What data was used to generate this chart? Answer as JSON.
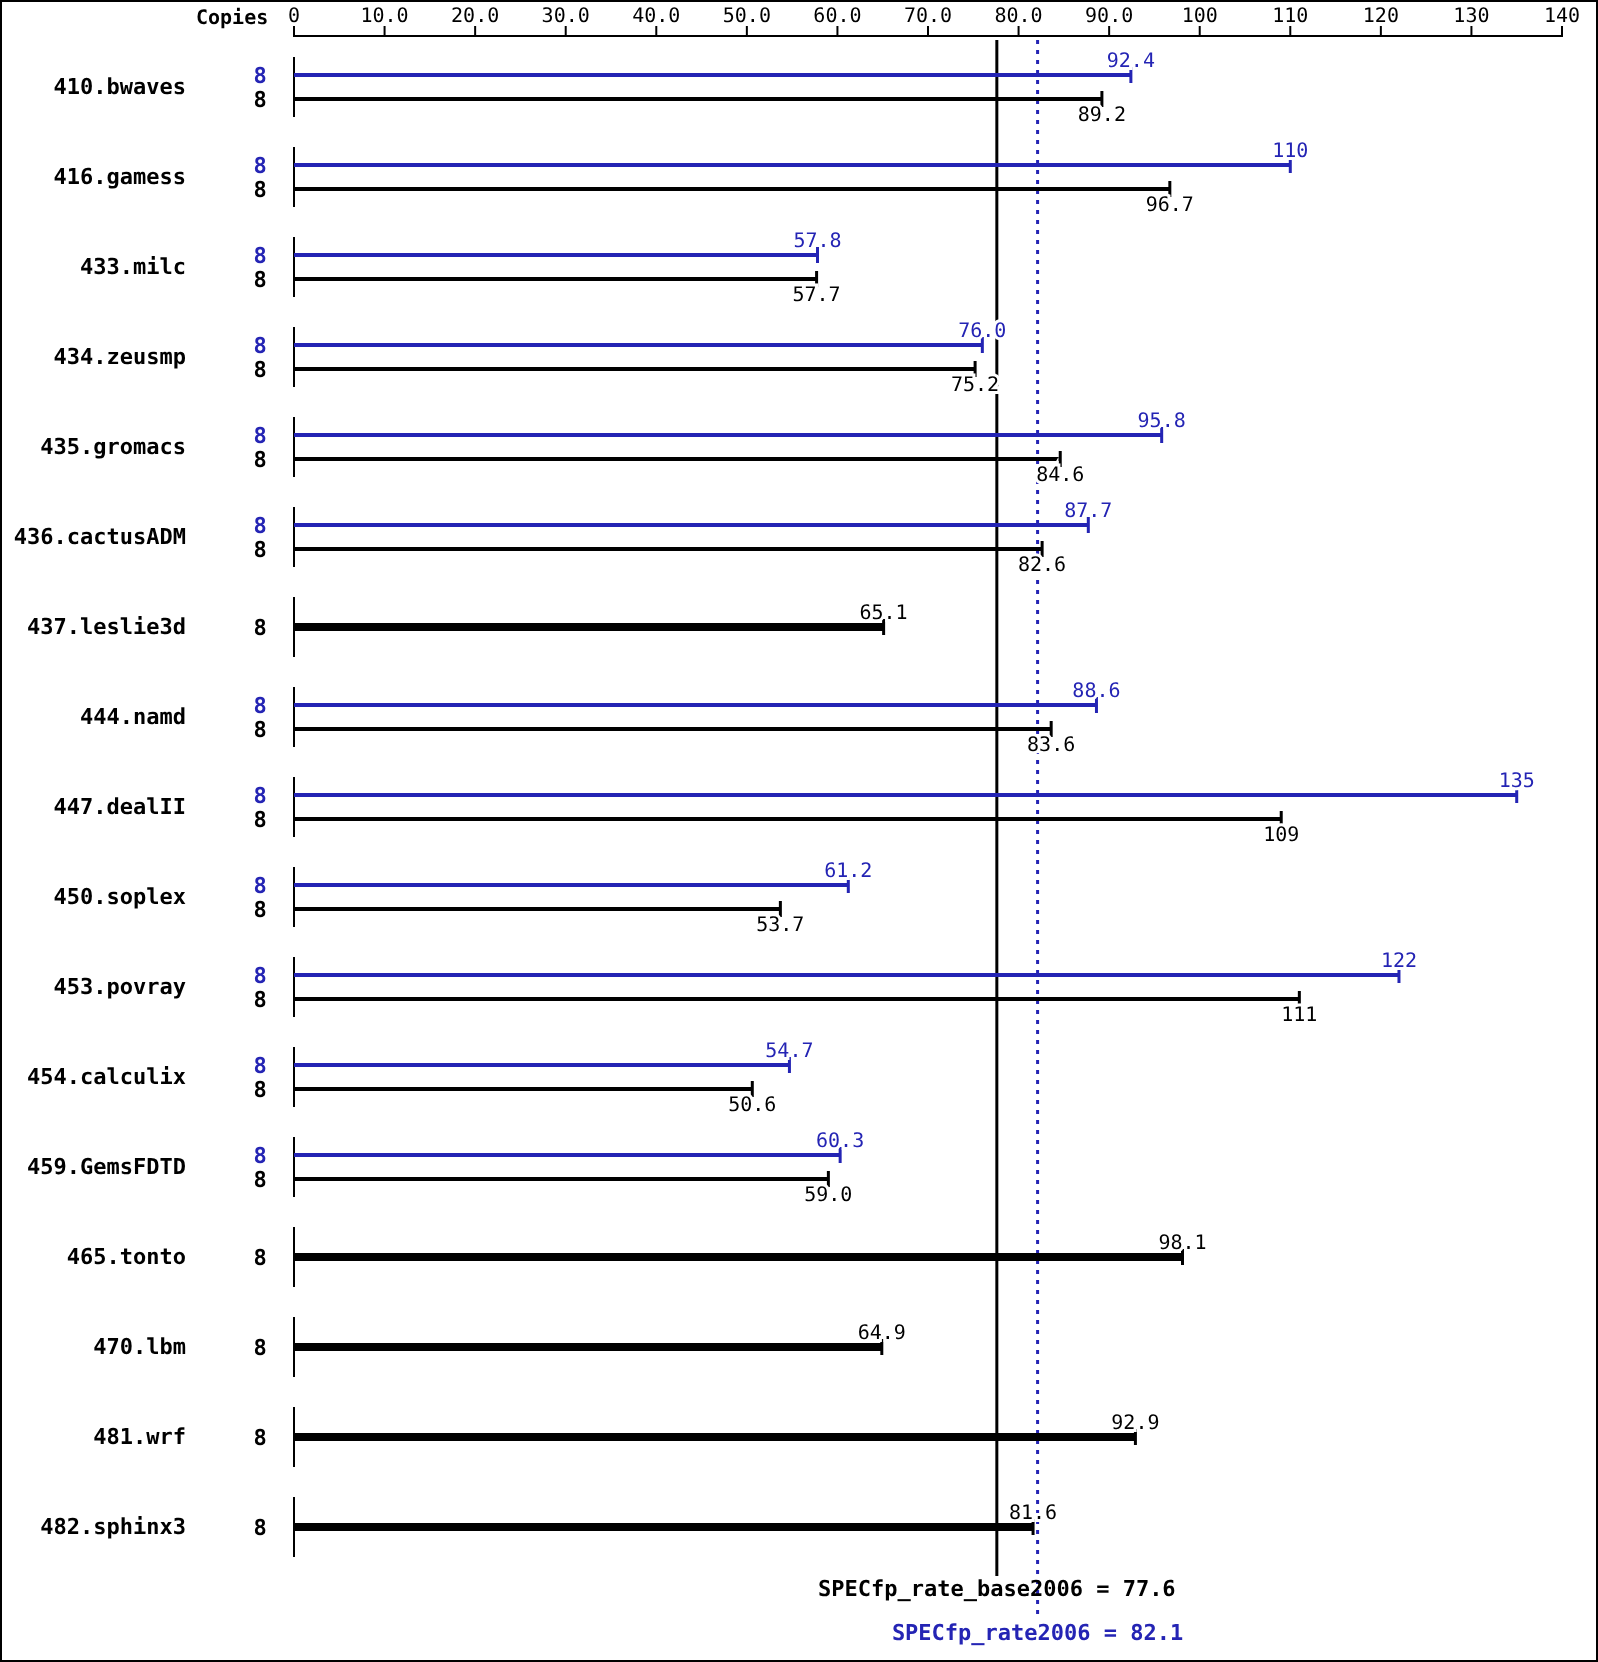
{
  "chart_data": {
    "type": "bar",
    "orientation": "horizontal",
    "categories": [
      "410.bwaves",
      "416.gamess",
      "433.milc",
      "434.zeusmp",
      "435.gromacs",
      "436.cactusADM",
      "437.leslie3d",
      "444.namd",
      "447.dealII",
      "450.soplex",
      "453.povray",
      "454.calculix",
      "459.GemsFDTD",
      "465.tonto",
      "470.lbm",
      "481.wrf",
      "482.sphinx3"
    ],
    "series": [
      {
        "color": "#2424b4",
        "values": [
          92.4,
          110,
          57.8,
          76.0,
          95.8,
          87.7,
          null,
          88.6,
          135,
          61.2,
          122,
          54.7,
          60.3,
          null,
          null,
          null,
          null
        ],
        "value_labels": [
          "92.4",
          "110",
          "57.8",
          "76.0",
          "95.8",
          "87.7",
          null,
          "88.6",
          "135",
          "61.2",
          "122",
          "54.7",
          "60.3",
          null,
          null,
          null,
          null
        ]
      },
      {
        "color": "#000000",
        "values": [
          89.2,
          96.7,
          57.7,
          75.2,
          84.6,
          82.6,
          65.1,
          83.6,
          109,
          53.7,
          111,
          50.6,
          59.0,
          98.1,
          64.9,
          92.9,
          81.6
        ],
        "value_labels": [
          "89.2",
          "96.7",
          "57.7",
          "75.2",
          "84.6",
          "82.6",
          "65.1",
          "83.6",
          "109",
          "53.7",
          "111",
          "50.6",
          "59.0",
          "98.1",
          "64.9",
          "92.9",
          "81.6"
        ]
      }
    ],
    "xlim": [
      0,
      140
    ],
    "xticks": [
      0,
      {
        "value": 10,
        "label": "10.0"
      },
      {
        "value": 20,
        "label": "20.0"
      },
      {
        "value": 30,
        "label": "30.0"
      },
      {
        "value": 40,
        "label": "40.0"
      },
      {
        "value": 50,
        "label": "50.0"
      },
      {
        "value": 60,
        "label": "60.0"
      },
      {
        "value": 70,
        "label": "70.0"
      },
      {
        "value": 80,
        "label": "80.0"
      },
      {
        "value": 90,
        "label": "90.0"
      },
      100,
      110,
      120,
      130,
      140
    ],
    "ref_lines": [
      {
        "axis": "x",
        "value": 77.6,
        "label": "SPECfp_rate_base2006 = 77.6",
        "color": "#000000",
        "line_style": "solid"
      },
      {
        "axis": "x",
        "value": 82.1,
        "label": "SPECfp_rate2006 = 82.1",
        "color": "#2424b4",
        "line_style": "dotted"
      }
    ],
    "annotations": [
      "Copies",
      "8",
      "8",
      "8",
      "8",
      "8",
      "8",
      "8",
      "8",
      "8",
      "8",
      "8",
      "8",
      "8",
      "8",
      "8",
      "8",
      "8",
      "8",
      "8",
      "8",
      "8",
      "8",
      "8",
      "8",
      "8",
      "8",
      "8",
      "8",
      "8"
    ],
    "grid": false
  }
}
